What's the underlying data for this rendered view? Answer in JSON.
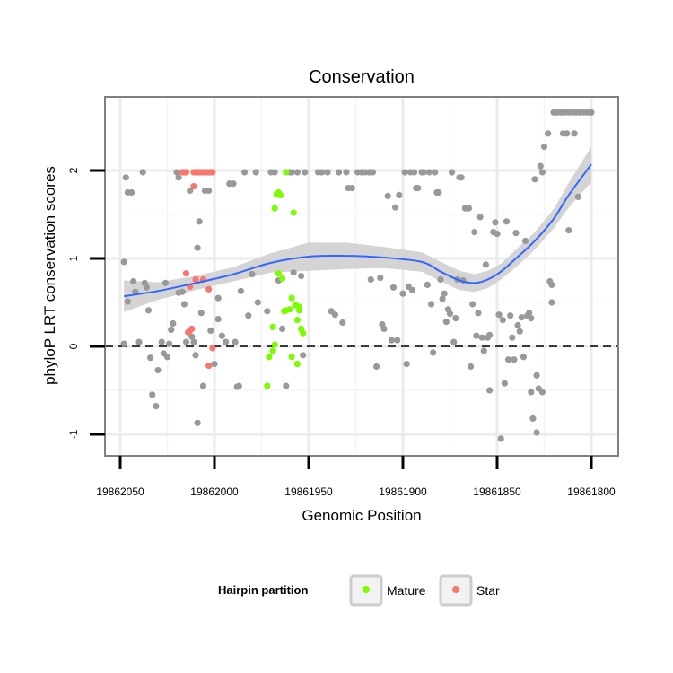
{
  "chart_data": {
    "type": "scatter",
    "title": "Conservation",
    "xlabel": "Genomic Position",
    "ylabel": "phyloP LRT conservation scores",
    "x_reversed": true,
    "xlim": [
      19862062,
      19861797
    ],
    "ylim": [
      -1.2,
      2.8
    ],
    "x_ticks": [
      19862050,
      19862000,
      19861950,
      19861900,
      19861850,
      19861800
    ],
    "x_tick_labels": [
      "19862050",
      "19862000",
      "19861950",
      "19861900",
      "19861850",
      "19861800"
    ],
    "y_ticks": [
      -1,
      0,
      1,
      2
    ],
    "y_tick_labels": [
      "-1",
      "0",
      "1",
      "2"
    ],
    "grid": true,
    "reference_line": {
      "y": 0,
      "style": "dashed"
    },
    "legend": {
      "title": "Hairpin partition",
      "position": "bottom",
      "entries": [
        {
          "label": "Mature",
          "color": "#7cfc00"
        },
        {
          "label": "Star",
          "color": "#f8766d"
        }
      ]
    },
    "colors": {
      "other": "#999999",
      "mature": "#7cfc00",
      "star": "#f8766d",
      "smooth": "#3366ff",
      "band": "#d4d4d4"
    },
    "series": [
      {
        "group": "other",
        "points": [
          [
            19862048,
            0.96
          ],
          [
            19862047,
            1.92
          ],
          [
            19862046,
            1.75
          ],
          [
            19862044,
            1.75
          ],
          [
            19862043,
            0.74
          ],
          [
            19862042,
            0.62
          ],
          [
            19862048,
            0.03
          ],
          [
            19862046,
            0.51
          ],
          [
            19862040,
            0.05
          ],
          [
            19862038,
            1.98
          ],
          [
            19862037,
            0.72
          ],
          [
            19862036,
            0.67
          ],
          [
            19862035,
            0.41
          ],
          [
            19862034,
            -0.13
          ],
          [
            19862033,
            -0.55
          ],
          [
            19862031,
            -0.68
          ],
          [
            19862030,
            -0.27
          ],
          [
            19862028,
            0.05
          ],
          [
            19862027,
            -0.08
          ],
          [
            19862026,
            0.72
          ],
          [
            19862025,
            -0.12
          ],
          [
            19862024,
            0.03
          ],
          [
            19862023,
            0.19
          ],
          [
            19862022,
            0.26
          ],
          [
            19862020,
            1.98
          ],
          [
            19862019,
            1.92
          ],
          [
            19862019,
            0.61
          ],
          [
            19862017,
            0.62
          ],
          [
            19862016,
            0.48
          ],
          [
            19862015,
            0.05
          ],
          [
            19862013,
            1.77
          ],
          [
            19862012,
            0.11
          ],
          [
            19862011,
            0.05
          ],
          [
            19862010,
            -0.1
          ],
          [
            19862009,
            1.12
          ],
          [
            19862008,
            1.42
          ],
          [
            19862009,
            -0.87
          ],
          [
            19862007,
            0.38
          ],
          [
            19862006,
            -0.45
          ],
          [
            19862005,
            1.77
          ],
          [
            19862003,
            1.77
          ],
          [
            19862002,
            0.18
          ],
          [
            19862000,
            -0.2
          ],
          [
            19861998,
            0.55
          ],
          [
            19861998,
            0.31
          ],
          [
            19861996,
            0.12
          ],
          [
            19861994,
            0.05
          ],
          [
            19861992,
            1.85
          ],
          [
            19861990,
            1.85
          ],
          [
            19861989,
            0.05
          ],
          [
            19861988,
            -0.46
          ],
          [
            19861987,
            -0.45
          ],
          [
            19861986,
            0.63
          ],
          [
            19861984,
            1.98
          ],
          [
            19861982,
            0.35
          ],
          [
            19861980,
            0.82
          ],
          [
            19861978,
            1.98
          ],
          [
            19861977,
            0.5
          ],
          [
            19861972,
            0.4
          ],
          [
            19861970,
            1.98
          ],
          [
            19861968,
            1.98
          ],
          [
            19861966,
            0.75
          ],
          [
            19861964,
            0.2
          ],
          [
            19861962,
            -0.45
          ],
          [
            19861960,
            1.98
          ],
          [
            19861959,
            1.98
          ],
          [
            19861958,
            0.84
          ],
          [
            19861956,
            1.98
          ],
          [
            19861954,
            0.8
          ],
          [
            19861953,
            -0.1
          ],
          [
            19861952,
            1.98
          ],
          [
            19861945,
            1.98
          ],
          [
            19861943,
            1.98
          ],
          [
            19861940,
            1.98
          ],
          [
            19861938,
            0.4
          ],
          [
            19861936,
            0.36
          ],
          [
            19861934,
            1.98
          ],
          [
            19861932,
            0.27
          ],
          [
            19861930,
            1.98
          ],
          [
            19861929,
            1.8
          ],
          [
            19861927,
            1.8
          ],
          [
            19861924,
            1.98
          ],
          [
            19861922,
            1.98
          ],
          [
            19861920,
            1.98
          ],
          [
            19861918,
            1.98
          ],
          [
            19861917,
            0.76
          ],
          [
            19861916,
            1.98
          ],
          [
            19861914,
            -0.23
          ],
          [
            19861912,
            0.78
          ],
          [
            19861911,
            0.25
          ],
          [
            19861910,
            0.2
          ],
          [
            19861908,
            1.71
          ],
          [
            19861906,
            0.07
          ],
          [
            19861905,
            0.67
          ],
          [
            19861904,
            1.58
          ],
          [
            19861903,
            0.07
          ],
          [
            19861902,
            1.72
          ],
          [
            19861900,
            0.6
          ],
          [
            19861899,
            1.98
          ],
          [
            19861898,
            -0.2
          ],
          [
            19861897,
            0.68
          ],
          [
            19861896,
            1.98
          ],
          [
            19861895,
            0.64
          ],
          [
            19861894,
            1.98
          ],
          [
            19861893,
            1.8
          ],
          [
            19861892,
            1.8
          ],
          [
            19861890,
            1.98
          ],
          [
            19861889,
            1.98
          ],
          [
            19861887,
            0.7
          ],
          [
            19861886,
            1.98
          ],
          [
            19861885,
            0.48
          ],
          [
            19861884,
            -0.07
          ],
          [
            19861883,
            1.98
          ],
          [
            19861882,
            1.75
          ],
          [
            19861881,
            1.75
          ],
          [
            19861880,
            0.76
          ],
          [
            19861879,
            0.54
          ],
          [
            19861878,
            0.6
          ],
          [
            19861877,
            0.28
          ],
          [
            19861876,
            0.42
          ],
          [
            19861875,
            0.37
          ],
          [
            19861874,
            1.98
          ],
          [
            19861873,
            0.05
          ],
          [
            19861872,
            0.32
          ],
          [
            19861871,
            0.76
          ],
          [
            19861870,
            1.92
          ],
          [
            19861869,
            1.92
          ],
          [
            19861868,
            0.75
          ],
          [
            19861867,
            1.57
          ],
          [
            19861866,
            1.57
          ],
          [
            19861865,
            1.57
          ],
          [
            19861864,
            -0.23
          ],
          [
            19861863,
            0.48
          ],
          [
            19861862,
            1.3
          ],
          [
            19861861,
            0.12
          ],
          [
            19861860,
            0.38
          ],
          [
            19861859,
            1.47
          ],
          [
            19861858,
            0.1
          ],
          [
            19861857,
            -0.05
          ],
          [
            19861856,
            0.93
          ],
          [
            19861855,
            0.1
          ],
          [
            19861854,
            0.13
          ],
          [
            19861854,
            -0.5
          ],
          [
            19861852,
            1.3
          ],
          [
            19861851,
            1.41
          ],
          [
            19861850,
            1.28
          ],
          [
            19861849,
            0.36
          ],
          [
            19861848,
            -1.05
          ],
          [
            19861847,
            0.3
          ],
          [
            19861846,
            -0.42
          ],
          [
            19861845,
            1.42
          ],
          [
            19861844,
            -0.15
          ],
          [
            19861843,
            0.35
          ],
          [
            19861842,
            0.1
          ],
          [
            19861841,
            -0.15
          ],
          [
            19861840,
            1.29
          ],
          [
            19861839,
            0.24
          ],
          [
            19861838,
            0.17
          ],
          [
            19861837,
            0.33
          ],
          [
            19861836,
            -0.12
          ],
          [
            19861835,
            1.2
          ],
          [
            19861834,
            0.35
          ],
          [
            19861833,
            0.38
          ],
          [
            19861832,
            0.32
          ],
          [
            19861832,
            -0.52
          ],
          [
            19861831,
            -0.82
          ],
          [
            19861830,
            1.9
          ],
          [
            19861829,
            -0.33
          ],
          [
            19861829,
            -0.98
          ],
          [
            19861828,
            -0.48
          ],
          [
            19861827,
            2.05
          ],
          [
            19861826,
            1.98
          ],
          [
            19861826,
            -0.52
          ],
          [
            19861825,
            2.27
          ],
          [
            19861823,
            2.42
          ],
          [
            19861822,
            0.74
          ],
          [
            19861821,
            0.7
          ],
          [
            19861821,
            0.5
          ],
          [
            19861820,
            2.66
          ],
          [
            19861818,
            2.66
          ],
          [
            19861816,
            2.66
          ],
          [
            19861815,
            2.42
          ],
          [
            19861814,
            2.66
          ],
          [
            19861813,
            2.42
          ],
          [
            19861812,
            2.66
          ],
          [
            19861810,
            2.66
          ],
          [
            19861809,
            2.42
          ],
          [
            19861808,
            2.66
          ],
          [
            19861806,
            2.66
          ],
          [
            19861804,
            2.66
          ],
          [
            19861802,
            2.66
          ],
          [
            19861800,
            2.66
          ],
          [
            19861812,
            1.32
          ],
          [
            19861807,
            1.7
          ]
        ]
      },
      {
        "group": "star",
        "name": "Star",
        "points": [
          [
            19862017,
            1.98
          ],
          [
            19862016,
            1.98
          ],
          [
            19862015,
            1.98
          ],
          [
            19862011,
            1.98
          ],
          [
            19862010,
            1.98
          ],
          [
            19862009,
            1.98
          ],
          [
            19862008,
            1.98
          ],
          [
            19862007,
            1.98
          ],
          [
            19862006,
            1.98
          ],
          [
            19862005,
            1.98
          ],
          [
            19862004,
            1.98
          ],
          [
            19862003,
            1.98
          ],
          [
            19862002,
            1.98
          ],
          [
            19862001,
            1.98
          ],
          [
            19862011,
            1.82
          ],
          [
            19862015,
            0.83
          ],
          [
            19862013,
            0.68
          ],
          [
            19862010,
            0.76
          ],
          [
            19862006,
            0.76
          ],
          [
            19862003,
            0.65
          ],
          [
            19862012,
            0.2
          ],
          [
            19862013,
            0.18
          ],
          [
            19862014,
            0.16
          ],
          [
            19862001,
            -0.02
          ],
          [
            19862003,
            -0.22
          ]
        ]
      },
      {
        "group": "mature",
        "name": "Mature",
        "points": [
          [
            19861962,
            1.98
          ],
          [
            19861967,
            1.73
          ],
          [
            19861966,
            1.75
          ],
          [
            19861965,
            1.72
          ],
          [
            19861968,
            1.57
          ],
          [
            19861958,
            1.52
          ],
          [
            19861964,
            0.77
          ],
          [
            19861966,
            0.83
          ],
          [
            19861959,
            0.55
          ],
          [
            19861957,
            0.47
          ],
          [
            19861955,
            0.45
          ],
          [
            19861960,
            0.42
          ],
          [
            19861962,
            0.41
          ],
          [
            19861963,
            0.4
          ],
          [
            19861956,
            0.3
          ],
          [
            19861954,
            0.2
          ],
          [
            19861953,
            0.15
          ],
          [
            19861969,
            0.22
          ],
          [
            19861968,
            0.02
          ],
          [
            19861971,
            -0.12
          ],
          [
            19861956,
            -0.2
          ],
          [
            19861959,
            -0.12
          ],
          [
            19861972,
            -0.45
          ],
          [
            19861955,
            0.41
          ],
          [
            19861969,
            -0.05
          ]
        ]
      }
    ],
    "smooth": {
      "x": [
        19862048,
        19862030,
        19862010,
        19861990,
        19861970,
        19861950,
        19861930,
        19861910,
        19861890,
        19861880,
        19861870,
        19861862,
        19861855,
        19861848,
        19861840,
        19861830,
        19861820,
        19861812,
        19861800
      ],
      "y": [
        0.57,
        0.63,
        0.72,
        0.82,
        0.95,
        1.02,
        1.03,
        1.01,
        0.96,
        0.85,
        0.75,
        0.72,
        0.76,
        0.85,
        1.0,
        1.2,
        1.45,
        1.72,
        2.07
      ],
      "upper": [
        0.75,
        0.73,
        0.8,
        0.9,
        1.06,
        1.18,
        1.18,
        1.13,
        1.07,
        0.96,
        0.86,
        0.82,
        0.86,
        0.94,
        1.1,
        1.3,
        1.56,
        1.86,
        2.27
      ],
      "lower": [
        0.39,
        0.53,
        0.64,
        0.74,
        0.84,
        0.86,
        0.88,
        0.89,
        0.85,
        0.74,
        0.64,
        0.62,
        0.66,
        0.76,
        0.9,
        1.1,
        1.34,
        1.58,
        1.87
      ]
    }
  }
}
